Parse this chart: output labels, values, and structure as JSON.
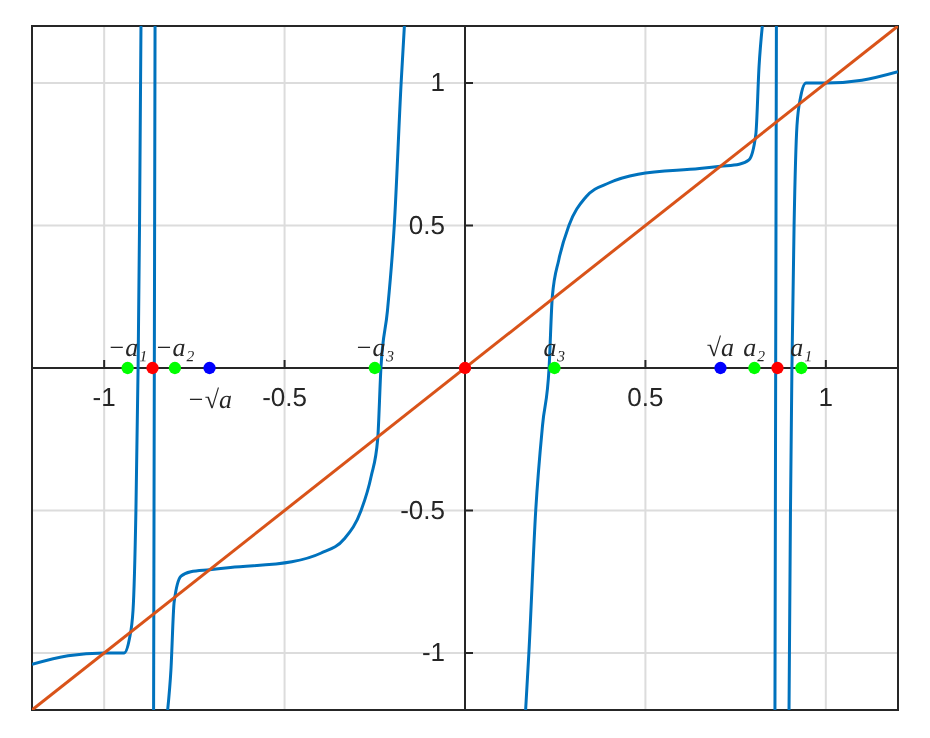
{
  "chart_data": {
    "type": "line",
    "xlim": [
      -1.2,
      1.2
    ],
    "ylim": [
      -1.2,
      1.2
    ],
    "xticks": [
      -1,
      -0.5,
      0.5,
      1
    ],
    "yticks": [
      -1,
      -0.5,
      0.5,
      1
    ],
    "grid": true,
    "series": [
      {
        "color": "#0072bd",
        "marker": "none",
        "x": [
          -1.2,
          -1.1,
          -1.0,
          -0.945,
          -0.93,
          -0.92,
          -0.912,
          -0.906,
          -0.902,
          -0.898,
          -0.88,
          -0.863,
          -0.861,
          -0.859,
          -0.84,
          -0.824,
          -0.815,
          -0.806,
          -0.787,
          -0.76,
          -0.708,
          -0.65,
          -0.48,
          -0.4,
          -0.335,
          -0.288,
          -0.26,
          -0.242,
          -0.233,
          -0.215,
          -0.196,
          -0.177,
          -0.168,
          0,
          0.168,
          0.177,
          0.196,
          0.215,
          0.233,
          0.242,
          0.26,
          0.288,
          0.335,
          0.4,
          0.48,
          0.65,
          0.708,
          0.76,
          0.787,
          0.806,
          0.815,
          0.824,
          0.84,
          0.859,
          0.861,
          0.863,
          0.88,
          0.898,
          0.902,
          0.906,
          0.912,
          0.92,
          0.93,
          0.945,
          1.0,
          1.1,
          1.2
        ],
        "values": [
          -1.04,
          -1.01,
          -1.0,
          -1.0,
          -0.95,
          -0.85,
          -0.5,
          0,
          0.5,
          1.2,
          null,
          -1.2,
          0,
          1.2,
          null,
          -1.2,
          -1.06,
          -0.82,
          -0.73,
          -0.715,
          -0.708,
          -0.7,
          -0.68,
          -0.65,
          -0.6,
          -0.5,
          -0.38,
          -0.25,
          0,
          0.2,
          0.5,
          1,
          1.2,
          null,
          -1.2,
          -1,
          -0.5,
          -0.2,
          0,
          0.25,
          0.38,
          0.5,
          0.6,
          0.65,
          0.68,
          0.7,
          0.708,
          0.715,
          0.73,
          0.82,
          1.06,
          1.2,
          null,
          -1.2,
          0,
          1.2,
          null,
          -1.2,
          -0.5,
          0,
          0.5,
          0.85,
          0.95,
          1.0,
          1.0,
          1.01,
          1.04
        ]
      },
      {
        "color": "#d95319",
        "marker": "none",
        "x": [
          -1.2,
          1.2
        ],
        "values": [
          -1.2,
          1.2
        ]
      },
      {
        "type": "scatter",
        "color": "#00ff00",
        "marker": "circle",
        "x": [
          -0.935,
          -0.804,
          -0.25,
          0.248,
          0.802,
          0.932
        ],
        "values": [
          0,
          0,
          0,
          0,
          0,
          0
        ],
        "value_labels": [
          "−a₁",
          "−a₂",
          "−a₃",
          "a₃",
          "a₂",
          "a₁"
        ]
      },
      {
        "type": "scatter",
        "color": "#0000ff",
        "marker": "circle",
        "x": [
          -0.708,
          0.708
        ],
        "values": [
          0,
          0
        ],
        "value_labels": [
          "−√a",
          "√a"
        ]
      },
      {
        "type": "scatter",
        "color": "#ff0000",
        "marker": "circle",
        "x": [
          -0.866,
          0,
          0.866
        ],
        "values": [
          0,
          0,
          0
        ]
      }
    ]
  }
}
